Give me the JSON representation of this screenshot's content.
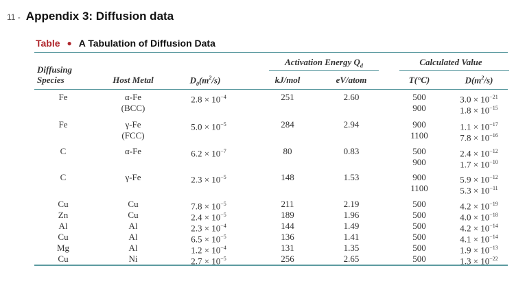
{
  "section": {
    "number": "11 -",
    "title": "Appendix 3: Diffusion data"
  },
  "table": {
    "label": "Table",
    "title": "A Tabulation of Diffusion Data",
    "headers": {
      "species": [
        "Diffusing",
        "Species"
      ],
      "host": "Host Metal",
      "d0": "D",
      "d0_sub": "0",
      "d0_unit_pre": "(m",
      "d0_unit_sup": "2",
      "d0_unit_post": "/s)",
      "activation": "Activation Energy Q",
      "activation_sub": "d",
      "kj": "kJ/mol",
      "ev": "eV/atom",
      "calculated": "Calculated Value",
      "temp": "T(°C)",
      "d": "D(m",
      "d_sup": "2",
      "d_post": "/s)"
    },
    "rows": [
      {
        "species": "Fe",
        "host": [
          "α-Fe",
          "(BCC)"
        ],
        "d0": "2.8 × 10",
        "d0_exp": "−4",
        "kj": "251",
        "ev": "2.60",
        "t": [
          "500",
          "900"
        ],
        "d": [
          "3.0 × 10",
          "1.8 × 10"
        ],
        "d_exp": [
          "−21",
          "−15"
        ]
      },
      {
        "species": "Fe",
        "host": [
          "γ-Fe",
          "(FCC)"
        ],
        "d0": "5.0 × 10",
        "d0_exp": "−5",
        "kj": "284",
        "ev": "2.94",
        "t": [
          "900",
          "1100"
        ],
        "d": [
          "1.1 × 10",
          "7.8 × 10"
        ],
        "d_exp": [
          "−17",
          "−16"
        ]
      },
      {
        "species": "C",
        "host": [
          "α-Fe"
        ],
        "d0": "6.2 × 10",
        "d0_exp": "−7",
        "kj": "80",
        "ev": "0.83",
        "t": [
          "500",
          "900"
        ],
        "d": [
          "2.4 × 10",
          "1.7 × 10"
        ],
        "d_exp": [
          "−12",
          "−10"
        ]
      },
      {
        "species": "C",
        "host": [
          "γ-Fe"
        ],
        "d0": "2.3 × 10",
        "d0_exp": "−5",
        "kj": "148",
        "ev": "1.53",
        "t": [
          "900",
          "1100"
        ],
        "d": [
          "5.9 × 10",
          "5.3 × 10"
        ],
        "d_exp": [
          "−12",
          "−11"
        ]
      },
      {
        "species": "Cu",
        "host": [
          "Cu"
        ],
        "d0": "7.8 × 10",
        "d0_exp": "−5",
        "kj": "211",
        "ev": "2.19",
        "t": [
          "500"
        ],
        "d": [
          "4.2 × 10"
        ],
        "d_exp": [
          "−19"
        ]
      },
      {
        "species": "Zn",
        "host": [
          "Cu"
        ],
        "d0": "2.4 × 10",
        "d0_exp": "−5",
        "kj": "189",
        "ev": "1.96",
        "t": [
          "500"
        ],
        "d": [
          "4.0 × 10"
        ],
        "d_exp": [
          "−18"
        ]
      },
      {
        "species": "Al",
        "host": [
          "Al"
        ],
        "d0": "2.3 × 10",
        "d0_exp": "−4",
        "kj": "144",
        "ev": "1.49",
        "t": [
          "500"
        ],
        "d": [
          "4.2 × 10"
        ],
        "d_exp": [
          "−14"
        ]
      },
      {
        "species": "Cu",
        "host": [
          "Al"
        ],
        "d0": "6.5 × 10",
        "d0_exp": "−5",
        "kj": "136",
        "ev": "1.41",
        "t": [
          "500"
        ],
        "d": [
          "4.1 × 10"
        ],
        "d_exp": [
          "−14"
        ]
      },
      {
        "species": "Mg",
        "host": [
          "Al"
        ],
        "d0": "1.2 × 10",
        "d0_exp": "−4",
        "kj": "131",
        "ev": "1.35",
        "t": [
          "500"
        ],
        "d": [
          "1.9 × 10"
        ],
        "d_exp": [
          "−13"
        ]
      },
      {
        "species": "Cu",
        "host": [
          "Ni"
        ],
        "d0": "2.7 × 10",
        "d0_exp": "−5",
        "kj": "256",
        "ev": "2.65",
        "t": [
          "500"
        ],
        "d": [
          "1.3 × 10"
        ],
        "d_exp": [
          "−22"
        ]
      }
    ]
  }
}
